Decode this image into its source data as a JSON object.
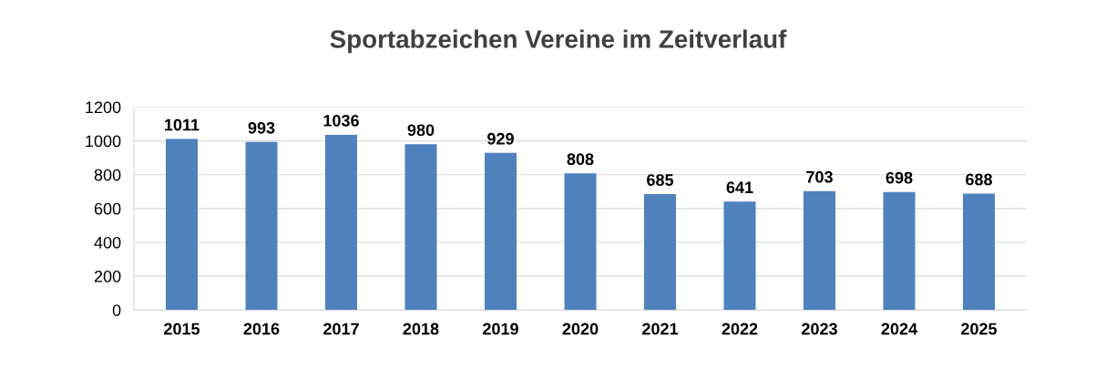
{
  "chart_data": {
    "type": "bar",
    "title": "Sportabzeichen Vereine im Zeitverlauf",
    "categories": [
      "2015",
      "2016",
      "2017",
      "2018",
      "2019",
      "2020",
      "2021",
      "2022",
      "2023",
      "2024",
      "2025"
    ],
    "values": [
      1011,
      993,
      1036,
      980,
      929,
      808,
      685,
      641,
      703,
      698,
      688
    ],
    "color": "#4f81bd",
    "ylim": [
      0,
      1200
    ],
    "yticks": [
      0,
      200,
      400,
      600,
      800,
      1000,
      1200
    ],
    "grid": "y",
    "data_labels": true
  }
}
